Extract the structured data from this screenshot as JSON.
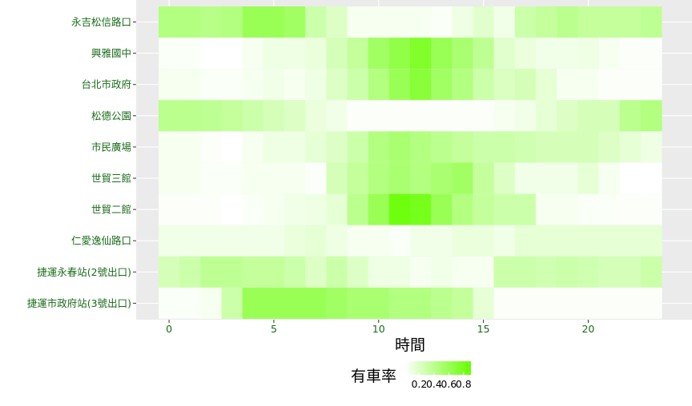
{
  "chart_data": {
    "type": "heatmap",
    "title": "",
    "xlabel": "時間",
    "ylabel": "",
    "xlim": [
      -0.5,
      23.5
    ],
    "x_ticks": [
      0,
      5,
      10,
      15,
      20
    ],
    "x_tick_labels": [
      "0",
      "5",
      "10",
      "15",
      "20"
    ],
    "hours": [
      0,
      1,
      2,
      3,
      4,
      5,
      6,
      7,
      8,
      9,
      10,
      11,
      12,
      13,
      14,
      15,
      16,
      17,
      18,
      19,
      20,
      21,
      22,
      23
    ],
    "stations": [
      "永吉松信路口",
      "興雅國中",
      "台北市政府",
      "松德公園",
      "市民廣場",
      "世貿三館",
      "世貿二館",
      "仁愛逸仙路口",
      "捷運永春站(2號出口)",
      "捷運市政府站(3號出口)"
    ],
    "values": [
      [
        0.45,
        0.45,
        0.42,
        0.45,
        0.6,
        0.6,
        0.55,
        0.3,
        0.2,
        0.05,
        0.05,
        0.05,
        0.05,
        0.03,
        0.1,
        0.18,
        0.08,
        0.3,
        0.35,
        0.4,
        0.35,
        0.35,
        0.35,
        0.38
      ],
      [
        0.03,
        0.03,
        0.0,
        0.0,
        0.05,
        0.1,
        0.1,
        0.12,
        0.25,
        0.35,
        0.55,
        0.65,
        0.75,
        0.6,
        0.5,
        0.38,
        0.18,
        0.12,
        0.08,
        0.08,
        0.1,
        0.05,
        0.02,
        0.02
      ],
      [
        0.05,
        0.05,
        0.03,
        0.03,
        0.05,
        0.08,
        0.05,
        0.1,
        0.2,
        0.3,
        0.45,
        0.6,
        0.7,
        0.55,
        0.45,
        0.3,
        0.22,
        0.25,
        0.15,
        0.05,
        0.05,
        0.02,
        0.02,
        0.02
      ],
      [
        0.4,
        0.4,
        0.38,
        0.35,
        0.3,
        0.25,
        0.2,
        0.12,
        0.08,
        0.02,
        0.02,
        0.02,
        0.02,
        0.02,
        0.02,
        0.02,
        0.05,
        0.08,
        0.15,
        0.2,
        0.25,
        0.25,
        0.4,
        0.45
      ],
      [
        0.05,
        0.05,
        0.02,
        0.0,
        0.05,
        0.1,
        0.1,
        0.15,
        0.2,
        0.3,
        0.45,
        0.5,
        0.45,
        0.4,
        0.35,
        0.3,
        0.3,
        0.28,
        0.25,
        0.25,
        0.25,
        0.2,
        0.15,
        0.1
      ],
      [
        0.05,
        0.05,
        0.03,
        0.03,
        0.05,
        0.05,
        0.05,
        0.02,
        0.25,
        0.35,
        0.45,
        0.5,
        0.45,
        0.5,
        0.55,
        0.35,
        0.2,
        0.08,
        0.08,
        0.08,
        0.15,
        0.05,
        0.0,
        0.0
      ],
      [
        0.02,
        0.02,
        0.02,
        0.0,
        0.03,
        0.05,
        0.08,
        0.1,
        0.15,
        0.4,
        0.6,
        0.85,
        0.8,
        0.6,
        0.45,
        0.35,
        0.3,
        0.3,
        0.05,
        0.05,
        0.03,
        0.03,
        0.02,
        0.02
      ],
      [
        0.08,
        0.08,
        0.08,
        0.08,
        0.08,
        0.08,
        0.12,
        0.15,
        0.1,
        0.05,
        0.05,
        0.03,
        0.08,
        0.08,
        0.12,
        0.12,
        0.08,
        0.15,
        0.15,
        0.15,
        0.15,
        0.15,
        0.15,
        0.15
      ],
      [
        0.25,
        0.3,
        0.38,
        0.38,
        0.35,
        0.35,
        0.3,
        0.2,
        0.3,
        0.2,
        0.1,
        0.1,
        0.05,
        0.08,
        0.05,
        0.05,
        0.3,
        0.3,
        0.28,
        0.3,
        0.28,
        0.25,
        0.25,
        0.3
      ],
      [
        0.03,
        0.03,
        0.05,
        0.3,
        0.6,
        0.6,
        0.6,
        0.6,
        0.55,
        0.5,
        0.5,
        0.45,
        0.45,
        0.4,
        0.35,
        0.15,
        0.02,
        0.02,
        0.02,
        0.02,
        0.02,
        0.02,
        0.02,
        0.02
      ]
    ],
    "legend": {
      "title": "有車率",
      "labels": [
        "0.2",
        "0.4",
        "0.6",
        "0.8"
      ],
      "values": [
        0.2,
        0.4,
        0.6,
        0.8
      ],
      "range": [
        0,
        0.9
      ],
      "position": "bottom"
    },
    "colors": {
      "low": "#ffffff",
      "high": "#66ff00",
      "panel_bg": "#ebebeb",
      "grid": "#ffffff",
      "axis_text": "#1a6b1a",
      "axis_title": "#000000"
    }
  }
}
